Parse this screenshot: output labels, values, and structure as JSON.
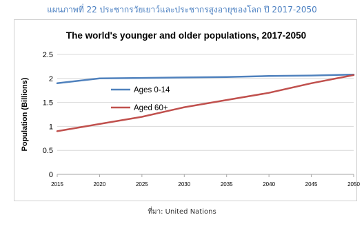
{
  "figure_caption": "แผนภาพที่ 22 ประชากรวัยเยาว์และประชากรสูงอายุของโลก ปี 2017-2050",
  "source_text": "ที่มา: United Nations",
  "colors": {
    "caption": "#4a7fc1",
    "ages_0_14": "#4f81bd",
    "aged_60_plus": "#c0504d"
  },
  "chart_data": {
    "type": "line",
    "title": "The world's younger and older populations, 2017-2050",
    "xlabel": "",
    "ylabel": "Population (Billions)",
    "xlim": [
      2015,
      2050
    ],
    "ylim": [
      0,
      2.5
    ],
    "x_ticks": [
      "2015",
      "2020",
      "2025",
      "2030",
      "2035",
      "2040",
      "2045",
      "2050"
    ],
    "y_ticks": [
      "0",
      "0.5",
      "1",
      "1.5",
      "2",
      "2.5"
    ],
    "grid": "horizontal",
    "legend": "upper-left inside plot",
    "series": [
      {
        "name": "Ages 0-14",
        "x": [
          2015,
          2020,
          2025,
          2030,
          2035,
          2040,
          2045,
          2050
        ],
        "y": [
          1.9,
          2.0,
          2.01,
          2.02,
          2.03,
          2.05,
          2.06,
          2.08
        ]
      },
      {
        "name": "Aged 60+",
        "x": [
          2015,
          2020,
          2025,
          2030,
          2035,
          2040,
          2045,
          2050
        ],
        "y": [
          0.9,
          1.05,
          1.2,
          1.4,
          1.55,
          1.7,
          1.9,
          2.07
        ]
      }
    ]
  }
}
